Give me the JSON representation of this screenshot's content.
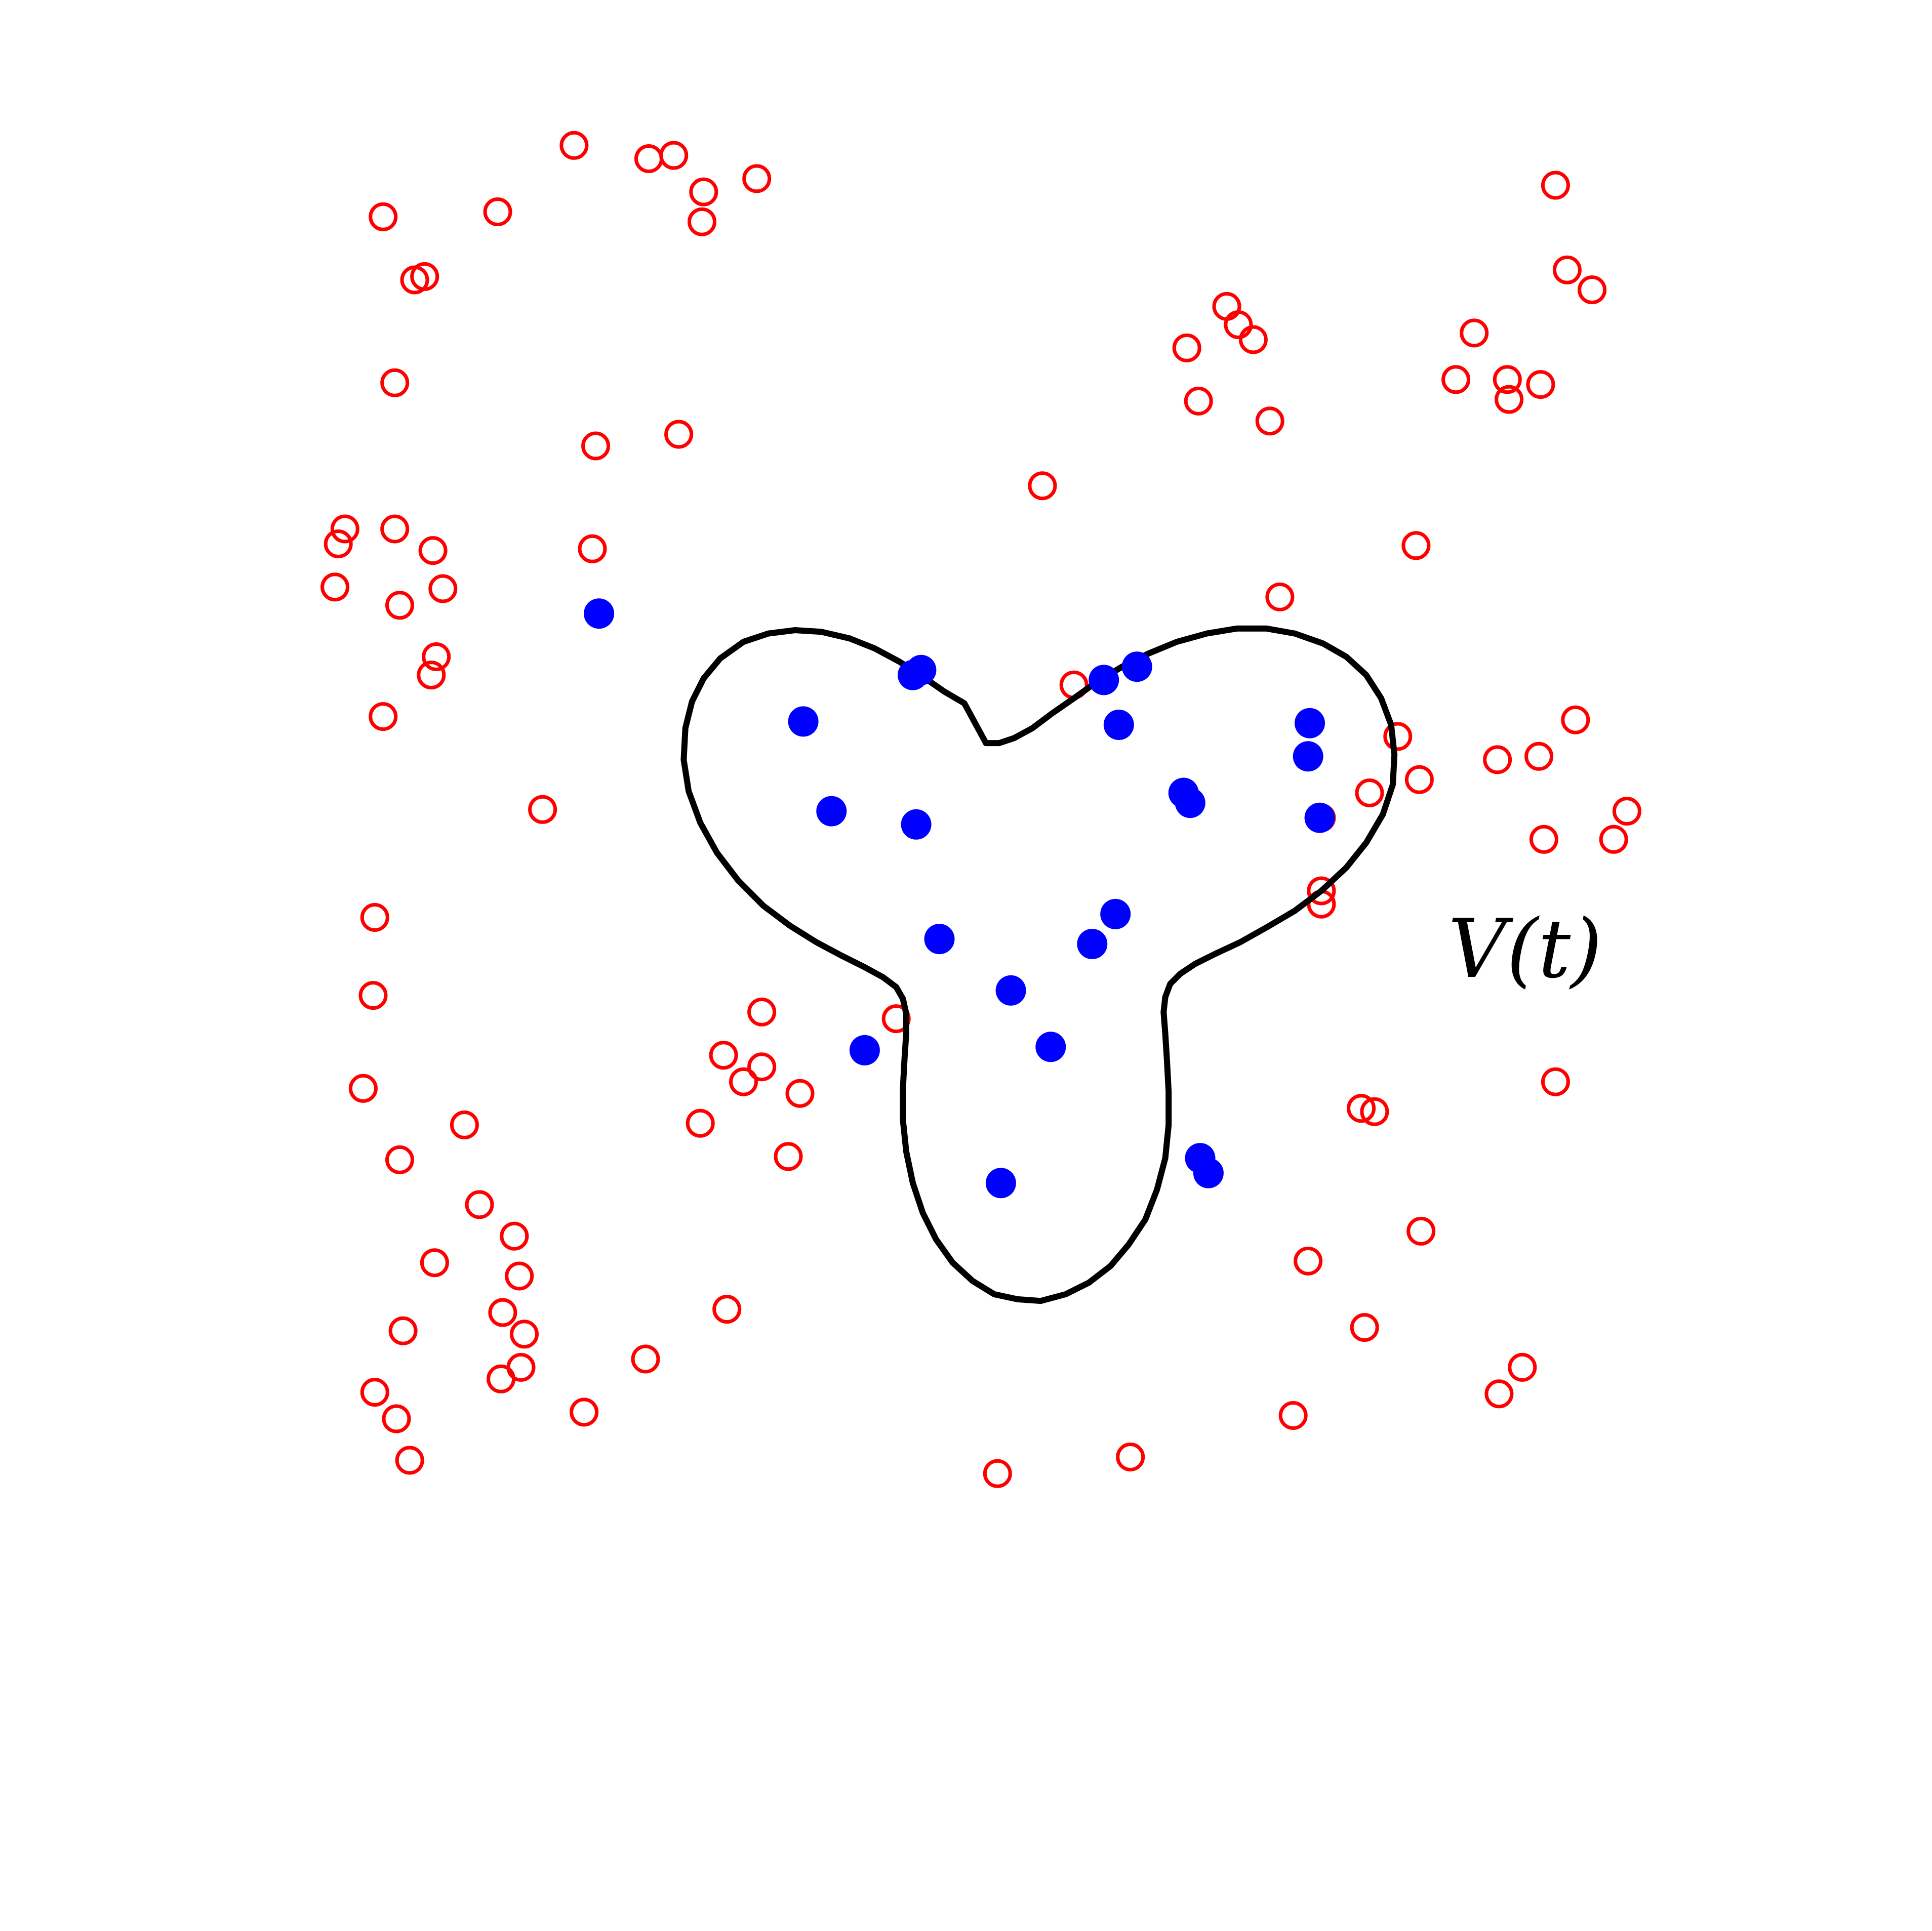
{
  "colors": {
    "background": "#ffffff",
    "boundary": "#000000",
    "inside_point": "#0000ff",
    "outside_point": "#ff0000"
  },
  "region": {
    "label": "V(t)",
    "shape": "three-lobed closed curve",
    "boundary_points": [
      [
        -0.01,
        1.13
      ],
      [
        -0.13,
        1.2
      ],
      [
        -0.26,
        1.29
      ],
      [
        -0.4,
        1.38
      ],
      [
        -0.55,
        1.46
      ],
      [
        -0.7,
        1.52
      ],
      [
        -0.87,
        1.56
      ],
      [
        -1.03,
        1.57
      ],
      [
        -1.19,
        1.55
      ],
      [
        -1.34,
        1.5
      ],
      [
        -1.48,
        1.4
      ],
      [
        -1.58,
        1.28
      ],
      [
        -1.65,
        1.14
      ],
      [
        -1.69,
        0.98
      ],
      [
        -1.7,
        0.79
      ],
      [
        -1.67,
        0.6
      ],
      [
        -1.6,
        0.41
      ],
      [
        -1.5,
        0.23
      ],
      [
        -1.37,
        0.06
      ],
      [
        -1.22,
        -0.09
      ],
      [
        -1.06,
        -0.21
      ],
      [
        -0.9,
        -0.31
      ],
      [
        -0.75,
        -0.39
      ],
      [
        -0.61,
        -0.46
      ],
      [
        -0.5,
        -0.52
      ],
      [
        -0.42,
        -0.58
      ],
      [
        -0.38,
        -0.65
      ],
      [
        -0.36,
        -0.74
      ],
      [
        -0.36,
        -0.86
      ],
      [
        -0.37,
        -1.01
      ],
      [
        -0.38,
        -1.19
      ],
      [
        -0.38,
        -1.38
      ],
      [
        -0.36,
        -1.57
      ],
      [
        -0.32,
        -1.76
      ],
      [
        -0.26,
        -1.94
      ],
      [
        -0.18,
        -2.1
      ],
      [
        -0.08,
        -2.24
      ],
      [
        0.04,
        -2.35
      ],
      [
        0.17,
        -2.43
      ],
      [
        0.31,
        -2.46
      ],
      [
        0.45,
        -2.47
      ],
      [
        0.6,
        -2.43
      ],
      [
        0.74,
        -2.36
      ],
      [
        0.87,
        -2.26
      ],
      [
        0.98,
        -2.13
      ],
      [
        1.08,
        -1.98
      ],
      [
        1.15,
        -1.8
      ],
      [
        1.2,
        -1.61
      ],
      [
        1.22,
        -1.41
      ],
      [
        1.22,
        -1.21
      ],
      [
        1.21,
        -1.02
      ],
      [
        1.2,
        -0.86
      ],
      [
        1.19,
        -0.73
      ],
      [
        1.2,
        -0.64
      ],
      [
        1.23,
        -0.56
      ],
      [
        1.29,
        -0.5
      ],
      [
        1.38,
        -0.44
      ],
      [
        1.5,
        -0.38
      ],
      [
        1.65,
        -0.31
      ],
      [
        1.81,
        -0.22
      ],
      [
        1.98,
        -0.12
      ],
      [
        2.14,
        0.0
      ],
      [
        2.29,
        0.14
      ],
      [
        2.41,
        0.29
      ],
      [
        2.51,
        0.46
      ],
      [
        2.57,
        0.64
      ],
      [
        2.58,
        0.82
      ],
      [
        2.56,
        1.0
      ],
      [
        2.5,
        1.16
      ],
      [
        2.41,
        1.3
      ],
      [
        2.29,
        1.41
      ],
      [
        2.15,
        1.49
      ],
      [
        1.98,
        1.55
      ],
      [
        1.81,
        1.58
      ],
      [
        1.63,
        1.58
      ],
      [
        1.45,
        1.55
      ],
      [
        1.27,
        1.5
      ],
      [
        1.1,
        1.43
      ],
      [
        0.94,
        1.35
      ],
      [
        0.79,
        1.26
      ],
      [
        0.65,
        1.16
      ],
      [
        0.52,
        1.07
      ],
      [
        0.4,
        0.98
      ],
      [
        0.29,
        0.92
      ],
      [
        0.2,
        0.89
      ],
      [
        0.12,
        0.89
      ]
    ]
  },
  "inside_points": [
    [
      -0.98,
      1.02
    ],
    [
      -0.32,
      1.3
    ],
    [
      -0.3,
      0.4
    ],
    [
      0.21,
      -1.76
    ],
    [
      0.51,
      -0.94
    ],
    [
      1.35,
      0.53
    ],
    [
      1.41,
      -1.61
    ],
    [
      0.92,
      1.0
    ],
    [
      1.03,
      1.35
    ],
    [
      0.9,
      -0.14
    ],
    [
      0.76,
      -0.32
    ],
    [
      1.31,
      0.59
    ],
    [
      -0.81,
      0.48
    ],
    [
      -2.21,
      1.67
    ],
    [
      -0.16,
      -0.29
    ],
    [
      -0.27,
      1.33
    ],
    [
      1.46,
      -1.7
    ],
    [
      2.13,
      0.44
    ],
    [
      2.07,
      1.01
    ],
    [
      2.06,
      0.81
    ],
    [
      -0.61,
      -0.96
    ],
    [
      0.83,
      1.27
    ],
    [
      0.27,
      -0.6
    ]
  ],
  "outside_points": [
    [
      -1.59,
      4.03
    ],
    [
      -1.91,
      4.41
    ],
    [
      -3.32,
      3.68
    ],
    [
      -3.51,
      4.06
    ],
    [
      -2.36,
      4.49
    ],
    [
      -2.82,
      4.09
    ],
    [
      -3.26,
      3.7
    ],
    [
      -3.44,
      3.06
    ],
    [
      -3.21,
      2.05
    ],
    [
      -3.51,
      1.05
    ],
    [
      -3.44,
      2.18
    ],
    [
      -2.25,
      2.06
    ],
    [
      -1.58,
      4.21
    ],
    [
      -1.26,
      4.29
    ],
    [
      -1.76,
      4.43
    ],
    [
      -2.23,
      2.68
    ],
    [
      -1.73,
      2.75
    ],
    [
      -3.8,
      1.83
    ],
    [
      -3.78,
      2.09
    ],
    [
      -3.74,
      2.18
    ],
    [
      -3.41,
      1.72
    ],
    [
      -3.15,
      1.82
    ],
    [
      -3.22,
      1.3
    ],
    [
      -3.19,
      1.41
    ],
    [
      -2.55,
      0.49
    ],
    [
      -3.56,
      -0.16
    ],
    [
      -3.57,
      -0.63
    ],
    [
      -1.23,
      -0.73
    ],
    [
      -1.23,
      -1.06
    ],
    [
      -1.0,
      -1.22
    ],
    [
      -1.07,
      -1.6
    ],
    [
      -1.46,
      -0.99
    ],
    [
      -1.34,
      -1.15
    ],
    [
      -1.6,
      -1.4
    ],
    [
      -3.63,
      -1.19
    ],
    [
      -3.41,
      -1.62
    ],
    [
      -3.02,
      -1.41
    ],
    [
      -2.72,
      -2.08
    ],
    [
      -2.93,
      -1.89
    ],
    [
      -2.69,
      -2.32
    ],
    [
      -2.79,
      -2.54
    ],
    [
      -3.2,
      -2.24
    ],
    [
      -2.66,
      -2.67
    ],
    [
      -3.39,
      -2.65
    ],
    [
      -2.8,
      -2.94
    ],
    [
      -3.56,
      -3.02
    ],
    [
      -3.43,
      -3.18
    ],
    [
      -3.35,
      -3.43
    ],
    [
      -2.68,
      -2.87
    ],
    [
      -1.93,
      -2.82
    ],
    [
      -1.44,
      -2.52
    ],
    [
      -2.3,
      -3.14
    ],
    [
      -0.42,
      -0.77
    ],
    [
      0.19,
      -3.51
    ],
    [
      0.99,
      -3.41
    ],
    [
      1.97,
      -3.16
    ],
    [
      2.4,
      -2.63
    ],
    [
      2.06,
      -2.23
    ],
    [
      2.38,
      -1.31
    ],
    [
      2.74,
      -2.05
    ],
    [
      2.46,
      -1.33
    ],
    [
      3.21,
      -3.03
    ],
    [
      3.35,
      -2.87
    ],
    [
      3.55,
      -1.15
    ],
    [
      3.48,
      0.31
    ],
    [
      3.9,
      0.31
    ],
    [
      2.43,
      0.59
    ],
    [
      2.73,
      0.67
    ],
    [
      2.6,
      0.93
    ],
    [
      2.14,
      0.44
    ],
    [
      2.14,
      0.0
    ],
    [
      2.14,
      -0.08
    ],
    [
      3.45,
      0.81
    ],
    [
      3.2,
      0.79
    ],
    [
      3.98,
      0.48
    ],
    [
      3.67,
      1.03
    ],
    [
      1.89,
      1.77
    ],
    [
      2.71,
      2.08
    ],
    [
      1.4,
      2.95
    ],
    [
      1.83,
      2.83
    ],
    [
      0.65,
      1.24
    ],
    [
      0.46,
      2.44
    ],
    [
      1.33,
      3.27
    ],
    [
      1.73,
      3.32
    ],
    [
      1.64,
      3.41
    ],
    [
      1.57,
      3.52
    ],
    [
      3.26,
      3.08
    ],
    [
      3.27,
      2.96
    ],
    [
      3.46,
      3.05
    ],
    [
      3.62,
      3.74
    ],
    [
      3.77,
      3.62
    ],
    [
      2.95,
      3.08
    ],
    [
      3.06,
      3.36
    ],
    [
      3.55,
      4.25
    ]
  ]
}
